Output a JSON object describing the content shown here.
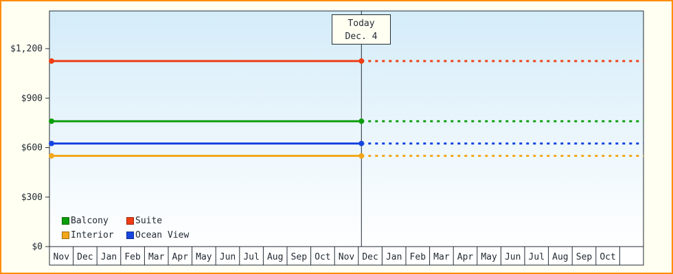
{
  "canvas": {
    "background": "#fffff2",
    "border_color": "#ff8c00",
    "plot_gradient_top": "#d4ecf9",
    "plot_gradient_bottom": "#ffffff",
    "axis_color": "#222a33",
    "text_color": "#222a33",
    "month_band_background": "#ffffff"
  },
  "chart_data": {
    "type": "line",
    "title": "",
    "xlabel": "",
    "ylabel": "",
    "x_categories": [
      "Nov",
      "Dec",
      "Jan",
      "Feb",
      "Mar",
      "Apr",
      "May",
      "Jun",
      "Jul",
      "Aug",
      "Sep",
      "Oct",
      "Nov",
      "Dec",
      "Jan",
      "Feb",
      "Mar",
      "Apr",
      "May",
      "Jun",
      "Jul",
      "Aug",
      "Sep",
      "Oct"
    ],
    "y_ticks": [
      {
        "value": 0,
        "label": "$0"
      },
      {
        "value": 300,
        "label": "$300"
      },
      {
        "value": 600,
        "label": "$600"
      },
      {
        "value": 900,
        "label": "$900"
      },
      {
        "value": 1200,
        "label": "$1,200"
      }
    ],
    "ylim": [
      0,
      1200
    ],
    "grid": false,
    "legend_position": "bottom-left",
    "today_marker": {
      "label_line1": "Today",
      "label_line2": "Dec. 4",
      "month_index": 13,
      "month_fraction": 0.13
    },
    "series": [
      {
        "name": "Balcony",
        "color": "#0a9e0a",
        "value": 760
      },
      {
        "name": "Suite",
        "color": "#ee3d14",
        "value": 1125
      },
      {
        "name": "Interior",
        "color": "#f2a71b",
        "value": 550
      },
      {
        "name": "Ocean View",
        "color": "#1745e0",
        "value": 625
      }
    ],
    "line_style_note": "flat price lines: solid with end markers left of Today line, dotted projection right of Today line"
  }
}
